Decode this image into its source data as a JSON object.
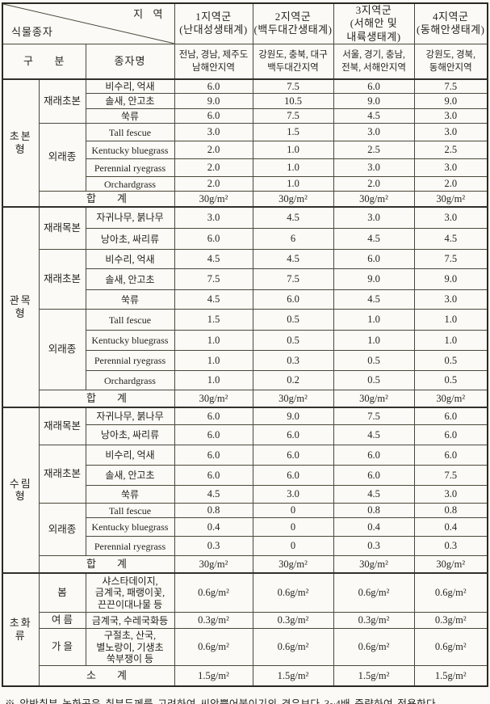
{
  "colors": {
    "paper": "#fbfaf6",
    "ink": "#26241f",
    "line": "#4c4739"
  },
  "header": {
    "corner_top": "지  역",
    "corner_bottom": "식물종자",
    "region_groups": [
      "1지역군\n(난대성생태계)",
      "2지역군\n(백두대간생태계)",
      "3지역군\n(서해안 및\n내륙생태계)",
      "4지역군\n(동해안생태계)"
    ],
    "gubun_label": "구      분",
    "seed_name_label": "종자명",
    "region_areas": [
      "전남, 경남, 제주도\n남해안지역",
      "강원도, 충북, 대구\n백두대간지역",
      "서울, 경기, 충남,\n전북, 서해안지역",
      "강원도, 경북,\n동해안지역"
    ]
  },
  "sections": [
    {
      "name": "초본형",
      "groups": [
        {
          "name": "재래초본",
          "rows": [
            {
              "seed": "비수리, 억새",
              "values": [
                "6.0",
                "7.5",
                "6.0",
                "7.5"
              ]
            },
            {
              "seed": "솔새, 안고초",
              "values": [
                "9.0",
                "10.5",
                "9.0",
                "9.0"
              ]
            },
            {
              "seed": "쑥류",
              "values": [
                "6.0",
                "7.5",
                "4.5",
                "3.0"
              ]
            }
          ]
        },
        {
          "name": "외래종",
          "rows": [
            {
              "seed": "Tall fescue",
              "values": [
                "3.0",
                "1.5",
                "3.0",
                "3.0"
              ]
            },
            {
              "seed": "Kentucky bluegrass",
              "values": [
                "2.0",
                "1.0",
                "2.5",
                "2.5"
              ]
            },
            {
              "seed": "Perennial ryegrass",
              "values": [
                "2.0",
                "1.0",
                "3.0",
                "3.0"
              ]
            },
            {
              "seed": "Orchardgrass",
              "values": [
                "2.0",
                "1.0",
                "2.0",
                "2.0"
              ]
            }
          ]
        }
      ],
      "total": {
        "label": "합        계",
        "values": [
          "30g/m²",
          "30g/m²",
          "30g/m²",
          "30g/m²"
        ]
      }
    },
    {
      "name": "관목형",
      "groups": [
        {
          "name": "재래목본",
          "rows": [
            {
              "seed": "자귀나무, 붉나무",
              "values": [
                "3.0",
                "4.5",
                "3.0",
                "3.0"
              ]
            },
            {
              "seed": "낭아초, 싸리류",
              "values": [
                "6.0",
                "6",
                "4.5",
                "4.5"
              ]
            }
          ]
        },
        {
          "name": "재래초본",
          "rows": [
            {
              "seed": "비수리, 억새",
              "values": [
                "4.5",
                "4.5",
                "6.0",
                "7.5"
              ]
            },
            {
              "seed": "솔새, 안고초",
              "values": [
                "7.5",
                "7.5",
                "9.0",
                "9.0"
              ]
            },
            {
              "seed": "쑥류",
              "values": [
                "4.5",
                "6.0",
                "4.5",
                "3.0"
              ]
            }
          ]
        },
        {
          "name": "외래종",
          "rows": [
            {
              "seed": "Tall fescue",
              "values": [
                "1.5",
                "0.5",
                "1.0",
                "1.0"
              ]
            },
            {
              "seed": "Kentucky bluegrass",
              "values": [
                "1.0",
                "0.5",
                "1.0",
                "1.0"
              ]
            },
            {
              "seed": "Perennial ryegrass",
              "values": [
                "1.0",
                "0.3",
                "0.5",
                "0.5"
              ]
            },
            {
              "seed": "Orchardgrass",
              "values": [
                "1.0",
                "0.2",
                "0.5",
                "0.5"
              ]
            }
          ]
        }
      ],
      "total": {
        "label": "합        계",
        "values": [
          "30g/m²",
          "30g/m²",
          "30g/m²",
          "30g/m²"
        ]
      }
    },
    {
      "name": "수림형",
      "groups": [
        {
          "name": "재래목본",
          "rows": [
            {
              "seed": "자귀나무, 붉나무",
              "values": [
                "6.0",
                "9.0",
                "7.5",
                "6.0"
              ]
            },
            {
              "seed": "낭아초, 싸리류",
              "values": [
                "6.0",
                "6.0",
                "4.5",
                "6.0"
              ]
            }
          ]
        },
        {
          "name": "재래초본",
          "rows": [
            {
              "seed": "비수리, 억새",
              "values": [
                "6.0",
                "6.0",
                "6.0",
                "6.0"
              ]
            },
            {
              "seed": "솔새, 안고초",
              "values": [
                "6.0",
                "6.0",
                "6.0",
                "7.5"
              ]
            },
            {
              "seed": "쑥류",
              "values": [
                "4.5",
                "3.0",
                "4.5",
                "3.0"
              ]
            }
          ]
        },
        {
          "name": "외래종",
          "rows": [
            {
              "seed": "Tall fescue",
              "values": [
                "0.8",
                "0",
                "0.8",
                "0.8"
              ]
            },
            {
              "seed": "Kentucky bluegrass",
              "values": [
                "0.4",
                "0",
                "0.4",
                "0.4"
              ]
            },
            {
              "seed": "Perennial ryegrass",
              "values": [
                "0.3",
                "0",
                "0.3",
                "0.3"
              ]
            }
          ]
        }
      ],
      "total": {
        "label": "합        계",
        "values": [
          "30g/m²",
          "30g/m²",
          "30g/m²",
          "30g/m²"
        ]
      }
    },
    {
      "name": "초화류",
      "groups": [
        {
          "name": "봄",
          "rows": [
            {
              "seed": "샤스타데이지,\n금계국, 패랭이꽃,\n끈끈이대나물 등",
              "values": [
                "0.6g/m²",
                "0.6g/m²",
                "0.6g/m²",
                "0.6g/m²"
              ]
            }
          ]
        },
        {
          "name": "여 름",
          "rows": [
            {
              "seed": "금계국, 수레국화등",
              "values": [
                "0.3g/m²",
                "0.3g/m²",
                "0.3g/m²",
                "0.3g/m²"
              ]
            }
          ]
        },
        {
          "name": "가 을",
          "rows": [
            {
              "seed": "구절초, 산국,\n별노랑이, 기생초\n쑥부쟁이 등",
              "values": [
                "0.6g/m²",
                "0.6g/m²",
                "0.6g/m²",
                "0.6g/m²"
              ]
            }
          ]
        }
      ],
      "total": {
        "label": "소        계",
        "values": [
          "1.5g/m²",
          "1.5g/m²",
          "1.5g/m²",
          "1.5g/m²"
        ]
      }
    }
  ],
  "footnote": "※ 암반취부 녹화공은 취부두께를 고려하여 씨앗뿜어붙이기의 경우보다 3~4배 증량하여 적용한다."
}
